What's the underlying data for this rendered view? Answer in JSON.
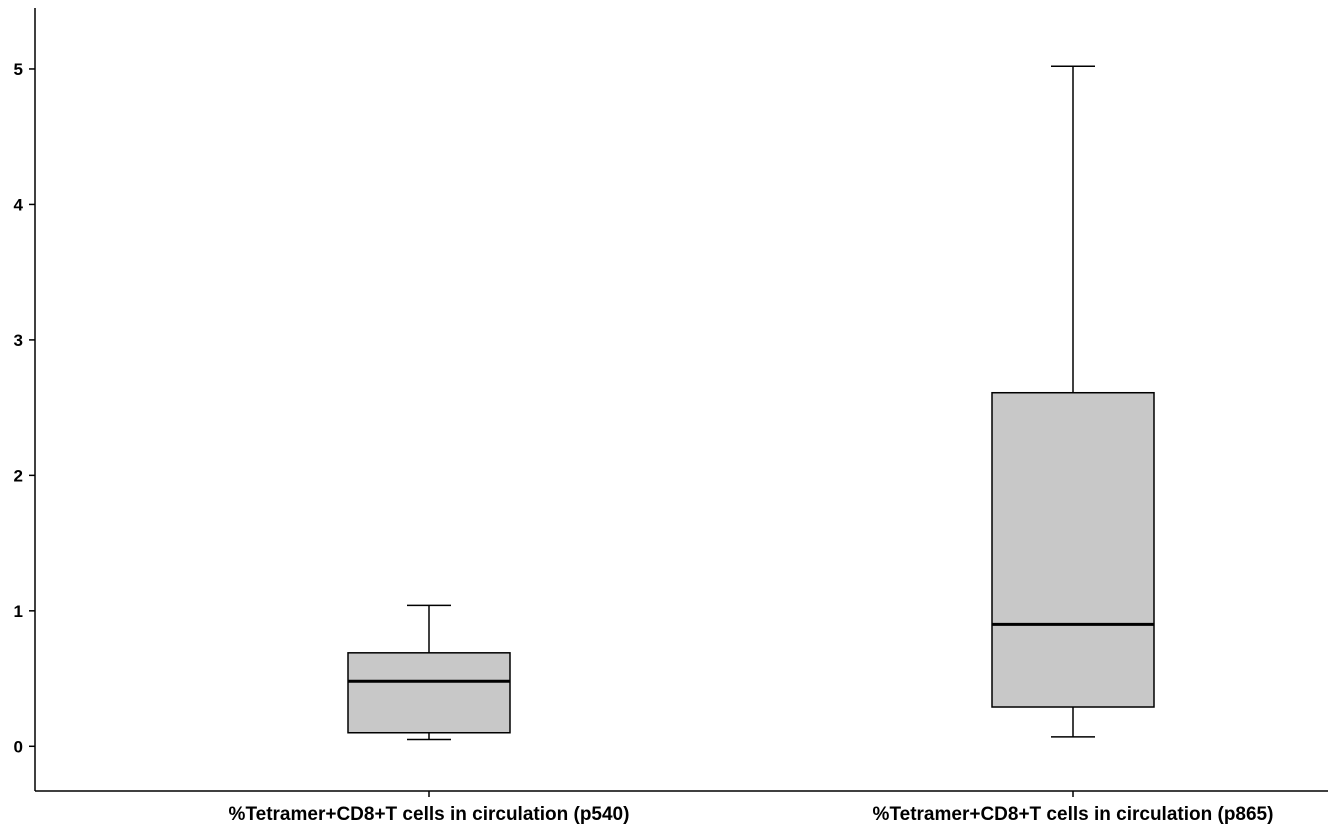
{
  "chart_data": {
    "type": "boxplot",
    "title": "",
    "xlabel": "",
    "ylabel": "",
    "ylim": [
      -0.33,
      5.45
    ],
    "yticks": [
      0,
      1,
      2,
      3,
      4,
      5
    ],
    "grid": false,
    "legend": "none",
    "categories": [
      "%Tetramer+CD8+T cells in circulation (p540)",
      "%Tetramer+CD8+T cells in circulation (p865)"
    ],
    "boxes": [
      {
        "whisker_low": 0.05,
        "q1": 0.1,
        "median": 0.48,
        "q3": 0.69,
        "whisker_high": 1.04
      },
      {
        "whisker_low": 0.07,
        "q1": 0.29,
        "median": 0.9,
        "q3": 2.61,
        "whisker_high": 5.02
      }
    ],
    "colors": {
      "box_fill": "#c8c8c8",
      "stroke": "#000000",
      "background": "#ffffff"
    }
  }
}
